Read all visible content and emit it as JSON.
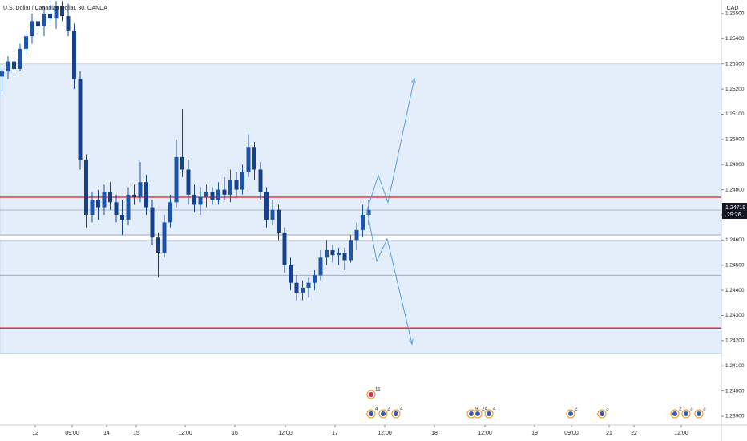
{
  "chart_data": {
    "type": "candlestick",
    "title": "U.S. Dollar / Canadian Dollar, 30, OANDA",
    "currency": "CAD",
    "last_price": {
      "value": 1.24719,
      "label": "1.24719"
    },
    "countdown": "29:26",
    "up_color": "#1f55a8",
    "down_color": "#17408a",
    "xlim": [
      0,
      180
    ],
    "ylim": [
      1.23865,
      1.25554
    ],
    "yticks": [
      {
        "value": 1.239,
        "label": "1.23900"
      },
      {
        "value": 1.24,
        "label": "1.24000"
      },
      {
        "value": 1.241,
        "label": "1.24100"
      },
      {
        "value": 1.242,
        "label": "1.24200"
      },
      {
        "value": 1.243,
        "label": "1.24300"
      },
      {
        "value": 1.244,
        "label": "1.24400"
      },
      {
        "value": 1.245,
        "label": "1.24500"
      },
      {
        "value": 1.246,
        "label": "1.24600"
      },
      {
        "value": 1.247,
        "label": "1.24700"
      },
      {
        "value": 1.248,
        "label": "1.24800"
      },
      {
        "value": 1.249,
        "label": "1.24900"
      },
      {
        "value": 1.25,
        "label": "1.25000"
      },
      {
        "value": 1.251,
        "label": "1.25100"
      },
      {
        "value": 1.252,
        "label": "1.25200"
      },
      {
        "value": 1.253,
        "label": "1.25300"
      },
      {
        "value": 1.254,
        "label": "1.25400"
      },
      {
        "value": 1.255,
        "label": "1.25500"
      }
    ],
    "xticks": [
      {
        "value": 8.8,
        "label": "12"
      },
      {
        "value": 18,
        "label": "09:00"
      },
      {
        "value": 26.6,
        "label": "14"
      },
      {
        "value": 34,
        "label": "15"
      },
      {
        "value": 46.2,
        "label": "12:00"
      },
      {
        "value": 58.6,
        "label": "16"
      },
      {
        "value": 71.2,
        "label": "12:00"
      },
      {
        "value": 83.6,
        "label": "17"
      },
      {
        "value": 96,
        "label": "12:00"
      },
      {
        "value": 108.4,
        "label": "18"
      },
      {
        "value": 121,
        "label": "12:00"
      },
      {
        "value": 133.4,
        "label": "19"
      },
      {
        "value": 142.6,
        "label": "09:00"
      },
      {
        "value": 152,
        "label": "21"
      },
      {
        "value": 158.2,
        "label": "22"
      },
      {
        "value": 170,
        "label": "12:00"
      }
    ],
    "x": [
      0.5,
      2,
      3.5,
      5,
      6.5,
      8,
      9.5,
      11,
      12.5,
      14,
      15.5,
      17,
      18.5,
      20,
      21.5,
      23,
      24.5,
      26,
      27.5,
      29,
      30.5,
      32,
      33.5,
      35,
      36.5,
      38,
      39.5,
      41,
      42.5,
      44,
      45.5,
      47,
      48.5,
      50,
      51.5,
      53,
      54.5,
      56,
      57.5,
      59,
      60.5,
      62,
      63.5,
      65,
      66.5,
      68,
      69.5,
      71,
      72.5,
      74,
      75.5,
      77,
      78.5,
      80,
      81.5,
      83,
      84.5,
      86,
      87.5,
      89,
      90.5,
      92
    ],
    "open": [
      1.2525,
      1.2527,
      1.2531,
      1.2528,
      1.2536,
      1.2541,
      1.2547,
      1.2545,
      1.255,
      1.2548,
      1.2553,
      1.2549,
      1.2543,
      1.2524,
      1.2492,
      1.247,
      1.2476,
      1.2473,
      1.2479,
      1.2475,
      1.247,
      1.2468,
      1.2478,
      1.2477,
      1.2483,
      1.2473,
      1.2461,
      1.2455,
      1.2467,
      1.2475,
      1.2493,
      1.2488,
      1.2478,
      1.2474,
      1.2477,
      1.2479,
      1.2476,
      1.248,
      1.2478,
      1.2484,
      1.248,
      1.2487,
      1.2497,
      1.2488,
      1.2479,
      1.2468,
      1.2472,
      1.2463,
      1.245,
      1.2443,
      1.2439,
      1.2441,
      1.2443,
      1.2446,
      1.2453,
      1.2456,
      1.2454,
      1.2455,
      1.2452,
      1.246,
      1.2464,
      1.247
    ],
    "high": [
      1.2529,
      1.2533,
      1.2534,
      1.2538,
      1.2543,
      1.255,
      1.2552,
      1.2553,
      1.2555,
      1.2555,
      1.2555,
      1.2554,
      1.2546,
      1.2527,
      1.2494,
      1.2479,
      1.248,
      1.2482,
      1.2483,
      1.2478,
      1.2476,
      1.2481,
      1.2482,
      1.2491,
      1.2486,
      1.2476,
      1.2463,
      1.247,
      1.2478,
      1.25,
      1.2512,
      1.2492,
      1.2482,
      1.2481,
      1.2482,
      1.2481,
      1.2483,
      1.2485,
      1.2488,
      1.2487,
      1.249,
      1.2502,
      1.2499,
      1.2491,
      1.2481,
      1.2476,
      1.2474,
      1.2465,
      1.2453,
      1.2446,
      1.2444,
      1.2445,
      1.2448,
      1.2456,
      1.246,
      1.2458,
      1.2457,
      1.2457,
      1.2462,
      1.2467,
      1.2474,
      1.2476
    ],
    "low": [
      1.2518,
      1.2524,
      1.2526,
      1.2527,
      1.2533,
      1.2538,
      1.2542,
      1.2541,
      1.2546,
      1.2544,
      1.2547,
      1.2541,
      1.252,
      1.2488,
      1.2465,
      1.2467,
      1.2468,
      1.247,
      1.2472,
      1.2467,
      1.2462,
      1.2466,
      1.2474,
      1.2475,
      1.247,
      1.2458,
      1.2445,
      1.2453,
      1.2465,
      1.2473,
      1.2485,
      1.2474,
      1.2471,
      1.247,
      1.2473,
      1.2474,
      1.2474,
      1.2476,
      1.2475,
      1.2477,
      1.2478,
      1.2485,
      1.2484,
      1.2476,
      1.2465,
      1.2466,
      1.246,
      1.2447,
      1.244,
      1.2436,
      1.2436,
      1.2437,
      1.244,
      1.2444,
      1.245,
      1.2451,
      1.245,
      1.2448,
      1.2451,
      1.2456,
      1.2461,
      1.2466
    ],
    "close": [
      1.2527,
      1.2531,
      1.2528,
      1.2536,
      1.2541,
      1.2547,
      1.2545,
      1.255,
      1.2548,
      1.2553,
      1.2549,
      1.2543,
      1.2524,
      1.2492,
      1.247,
      1.2476,
      1.2473,
      1.2479,
      1.2475,
      1.247,
      1.2468,
      1.2478,
      1.2477,
      1.2483,
      1.2473,
      1.2461,
      1.2455,
      1.2467,
      1.2475,
      1.2493,
      1.2488,
      1.2478,
      1.2474,
      1.2477,
      1.2479,
      1.2476,
      1.248,
      1.2478,
      1.2484,
      1.248,
      1.2487,
      1.2497,
      1.2488,
      1.2479,
      1.2468,
      1.2472,
      1.2463,
      1.245,
      1.2443,
      1.2439,
      1.2441,
      1.2443,
      1.2446,
      1.2453,
      1.2456,
      1.2454,
      1.2455,
      1.2452,
      1.246,
      1.2464,
      1.247,
      1.24719
    ],
    "zones": [
      {
        "from": 1.2462,
        "to": 1.253,
        "color": "#e3eefa"
      },
      {
        "from": 1.2415,
        "to": 1.246,
        "color": "#e3eefa"
      }
    ],
    "lines": [
      {
        "value": 1.2477,
        "color": "#e01e1e"
      },
      {
        "value": 1.2425,
        "color": "#e01e1e"
      },
      {
        "value": 1.24719,
        "color": "#9aa3b5"
      },
      {
        "value": 1.2462,
        "color": "#9aa3b5"
      },
      {
        "value": 1.2446,
        "color": "#9aa3b5"
      }
    ],
    "projections": [
      {
        "x": [
          91.6,
          94.4,
          96.8,
          103.4
        ],
        "y": [
          1.24719,
          1.24858,
          1.24749,
          1.25243
        ],
        "color": "#5aa3dc"
      },
      {
        "x": [
          91.6,
          94,
          96.6,
          102.8
        ],
        "y": [
          1.24719,
          1.24516,
          1.24605,
          1.24187
        ],
        "color": "#5aa3dc"
      }
    ],
    "events": [
      {
        "x": 92.6,
        "count": 4
      },
      {
        "x": 92.6,
        "count": 11
      },
      {
        "x": 95.6,
        "count": 2
      },
      {
        "x": 98.8,
        "count": 4
      },
      {
        "x": 117.6,
        "count": 9
      },
      {
        "x": 119.2,
        "count": 24
      },
      {
        "x": 122,
        "count": 4
      },
      {
        "x": 142.4,
        "count": 2
      },
      {
        "x": 150.2,
        "count": 3
      },
      {
        "x": 168.4,
        "count": 2
      },
      {
        "x": 171.2,
        "count": 3
      },
      {
        "x": 174.4,
        "count": 3
      }
    ]
  }
}
